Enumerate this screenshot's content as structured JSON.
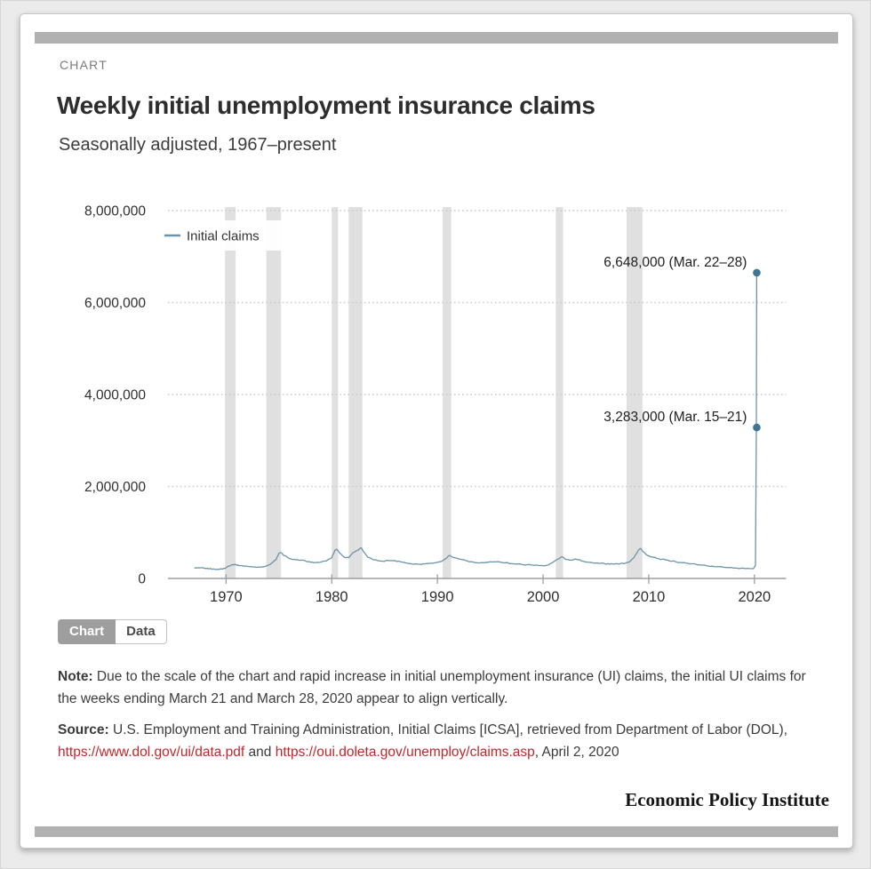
{
  "page": {
    "kicker": "CHART",
    "title": "Weekly initial unemployment insurance claims",
    "subtitle": "Seasonally adjusted, 1967–present"
  },
  "tabs": [
    {
      "label": "Chart",
      "active": true
    },
    {
      "label": "Data",
      "active": false
    }
  ],
  "note": {
    "label": "Note:",
    "text": " Due to the scale of the chart and rapid increase in initial unemployment insurance (UI) claims, the initial UI claims for the weeks ending March 21 and March 28, 2020 appear to align vertically."
  },
  "source": {
    "label": "Source:",
    "pre": " U.S. Employment and Training Administration, Initial Claims [ICSA], retrieved from Department of Labor (DOL), ",
    "link1": "https://www.dol.gov/ui/data.pdf",
    "mid": " and ",
    "link2": "https://oui.doleta.gov/unemploy/claims.asp",
    "post": ", April 2, 2020"
  },
  "branding": "Economic Policy Institute",
  "colors": {
    "line": "#6b94aa",
    "dot": "#3c7693",
    "band": "#e0e0e0",
    "grid": "#c9c9c9",
    "axis": "#9e9e9e",
    "link": "#c0272d",
    "accent_bar": "#b1b1b1"
  },
  "chart_data": {
    "type": "line",
    "title": "Weekly initial unemployment insurance claims",
    "subtitle": "Seasonally adjusted, 1967–present",
    "legend": [
      {
        "name": "Initial claims"
      }
    ],
    "legend_position": "top-left-inside",
    "grid": "dotted-horizontal",
    "xlim": [
      1964.5,
      2023
    ],
    "ylim": [
      0,
      8000000
    ],
    "x_ticks": [
      1970,
      1980,
      1990,
      2000,
      2010,
      2020
    ],
    "y_ticks": [
      {
        "value": 0,
        "label": "0"
      },
      {
        "value": 2000000,
        "label": "2,000,000"
      },
      {
        "value": 4000000,
        "label": "4,000,000"
      },
      {
        "value": 6000000,
        "label": "6,000,000"
      },
      {
        "value": 8000000,
        "label": "8,000,000"
      }
    ],
    "recession_bands": [
      [
        1969.9,
        1970.9
      ],
      [
        1973.8,
        1975.2
      ],
      [
        1980.0,
        1980.6
      ],
      [
        1981.6,
        1982.9
      ],
      [
        1990.5,
        1991.3
      ],
      [
        2001.2,
        2001.9
      ],
      [
        2007.9,
        2009.4
      ]
    ],
    "annotations": [
      {
        "label": "6,648,000 (Mar. 22–28)",
        "x": 2020.22,
        "y": 6648000
      },
      {
        "label": "3,283,000 (Mar. 15–21)",
        "x": 2020.22,
        "y": 3283000
      }
    ],
    "series": [
      {
        "name": "Initial claims",
        "points": [
          [
            1967.0,
            235000
          ],
          [
            1967.3,
            226000
          ],
          [
            1967.6,
            231000
          ],
          [
            1968.0,
            218000
          ],
          [
            1968.4,
            210000
          ],
          [
            1968.8,
            206000
          ],
          [
            1969.2,
            200000
          ],
          [
            1969.6,
            206000
          ],
          [
            1969.9,
            216000
          ],
          [
            1970.2,
            266000
          ],
          [
            1970.5,
            296000
          ],
          [
            1970.8,
            306000
          ],
          [
            1971.1,
            291000
          ],
          [
            1971.5,
            281000
          ],
          [
            1972.0,
            262000
          ],
          [
            1972.5,
            251000
          ],
          [
            1973.0,
            243000
          ],
          [
            1973.5,
            256000
          ],
          [
            1973.9,
            281000
          ],
          [
            1974.3,
            331000
          ],
          [
            1974.7,
            401000
          ],
          [
            1975.0,
            546000
          ],
          [
            1975.2,
            561000
          ],
          [
            1975.5,
            496000
          ],
          [
            1975.8,
            461000
          ],
          [
            1976.2,
            421000
          ],
          [
            1976.6,
            406000
          ],
          [
            1977.0,
            396000
          ],
          [
            1977.5,
            381000
          ],
          [
            1978.0,
            353000
          ],
          [
            1978.5,
            347000
          ],
          [
            1979.0,
            356000
          ],
          [
            1979.5,
            383000
          ],
          [
            1980.0,
            451000
          ],
          [
            1980.3,
            616000
          ],
          [
            1980.5,
            636000
          ],
          [
            1980.8,
            541000
          ],
          [
            1981.2,
            461000
          ],
          [
            1981.6,
            451000
          ],
          [
            1982.0,
            561000
          ],
          [
            1982.4,
            611000
          ],
          [
            1982.8,
            666000
          ],
          [
            1983.0,
            586000
          ],
          [
            1983.4,
            461000
          ],
          [
            1983.8,
            421000
          ],
          [
            1984.3,
            391000
          ],
          [
            1984.8,
            376000
          ],
          [
            1985.3,
            393000
          ],
          [
            1985.8,
            386000
          ],
          [
            1986.3,
            376000
          ],
          [
            1986.8,
            351000
          ],
          [
            1987.3,
            323000
          ],
          [
            1987.8,
            313000
          ],
          [
            1988.3,
            309000
          ],
          [
            1988.8,
            317000
          ],
          [
            1989.3,
            333000
          ],
          [
            1989.8,
            343000
          ],
          [
            1990.3,
            363000
          ],
          [
            1990.7,
            416000
          ],
          [
            1991.0,
            481000
          ],
          [
            1991.2,
            501000
          ],
          [
            1991.5,
            461000
          ],
          [
            1992.0,
            426000
          ],
          [
            1992.5,
            406000
          ],
          [
            1993.0,
            363000
          ],
          [
            1993.5,
            346000
          ],
          [
            1994.0,
            339000
          ],
          [
            1994.5,
            343000
          ],
          [
            1995.0,
            363000
          ],
          [
            1995.5,
            359000
          ],
          [
            1996.0,
            353000
          ],
          [
            1996.5,
            343000
          ],
          [
            1997.0,
            323000
          ],
          [
            1997.5,
            313000
          ],
          [
            1998.0,
            305000
          ],
          [
            1998.5,
            299000
          ],
          [
            1999.0,
            291000
          ],
          [
            1999.5,
            285000
          ],
          [
            2000.0,
            279000
          ],
          [
            2000.5,
            293000
          ],
          [
            2001.0,
            361000
          ],
          [
            2001.4,
            421000
          ],
          [
            2001.8,
            469000
          ],
          [
            2002.2,
            413000
          ],
          [
            2002.6,
            399000
          ],
          [
            2003.0,
            423000
          ],
          [
            2003.4,
            409000
          ],
          [
            2003.8,
            373000
          ],
          [
            2004.3,
            349000
          ],
          [
            2004.8,
            337000
          ],
          [
            2005.3,
            329000
          ],
          [
            2005.8,
            323000
          ],
          [
            2006.3,
            309000
          ],
          [
            2006.8,
            317000
          ],
          [
            2007.3,
            321000
          ],
          [
            2007.8,
            333000
          ],
          [
            2008.2,
            363000
          ],
          [
            2008.6,
            453000
          ],
          [
            2009.0,
            609000
          ],
          [
            2009.2,
            653000
          ],
          [
            2009.5,
            573000
          ],
          [
            2009.8,
            513000
          ],
          [
            2010.2,
            471000
          ],
          [
            2010.6,
            459000
          ],
          [
            2011.0,
            421000
          ],
          [
            2011.5,
            409000
          ],
          [
            2012.0,
            377000
          ],
          [
            2012.5,
            369000
          ],
          [
            2013.0,
            347000
          ],
          [
            2013.5,
            337000
          ],
          [
            2014.0,
            319000
          ],
          [
            2014.5,
            303000
          ],
          [
            2015.0,
            287000
          ],
          [
            2015.5,
            277000
          ],
          [
            2016.0,
            267000
          ],
          [
            2016.5,
            259000
          ],
          [
            2017.0,
            247000
          ],
          [
            2017.5,
            239000
          ],
          [
            2018.0,
            227000
          ],
          [
            2018.5,
            217000
          ],
          [
            2019.0,
            221000
          ],
          [
            2019.5,
            215000
          ],
          [
            2019.9,
            212000
          ],
          [
            2020.1,
            282000
          ],
          [
            2020.18,
            3283000
          ],
          [
            2020.22,
            6648000
          ]
        ]
      }
    ]
  }
}
